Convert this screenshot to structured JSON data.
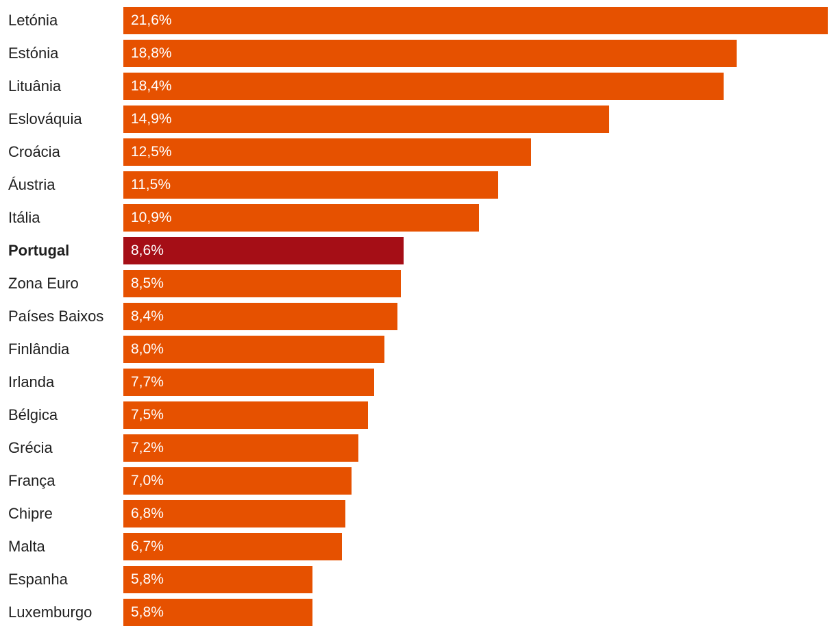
{
  "chart_data": {
    "type": "bar",
    "orientation": "horizontal",
    "categories": [
      "Letónia",
      "Estónia",
      "Lituânia",
      "Eslováquia",
      "Croácia",
      "Áustria",
      "Itália",
      "Portugal",
      "Zona Euro",
      "Países Baixos",
      "Finlândia",
      "Irlanda",
      "Bélgica",
      "Grécia",
      "França",
      "Chipre",
      "Malta",
      "Espanha",
      "Luxemburgo"
    ],
    "values": [
      21.6,
      18.8,
      18.4,
      14.9,
      12.5,
      11.5,
      10.9,
      8.6,
      8.5,
      8.4,
      8.0,
      7.7,
      7.5,
      7.2,
      7.0,
      6.8,
      6.7,
      5.8,
      5.8
    ],
    "value_labels": [
      "21,6%",
      "18,8%",
      "18,4%",
      "14,9%",
      "12,5%",
      "11,5%",
      "10,9%",
      "8,6%",
      "8,5%",
      "8,4%",
      "8,0%",
      "7,7%",
      "7,5%",
      "7,2%",
      "7,0%",
      "6,8%",
      "6,7%",
      "5,8%",
      "5,8%"
    ],
    "highlight": "Portugal",
    "xlim": [
      0,
      21.6
    ],
    "grid": false,
    "colors": {
      "default": "#e65100",
      "highlight": "#a50e16"
    }
  }
}
